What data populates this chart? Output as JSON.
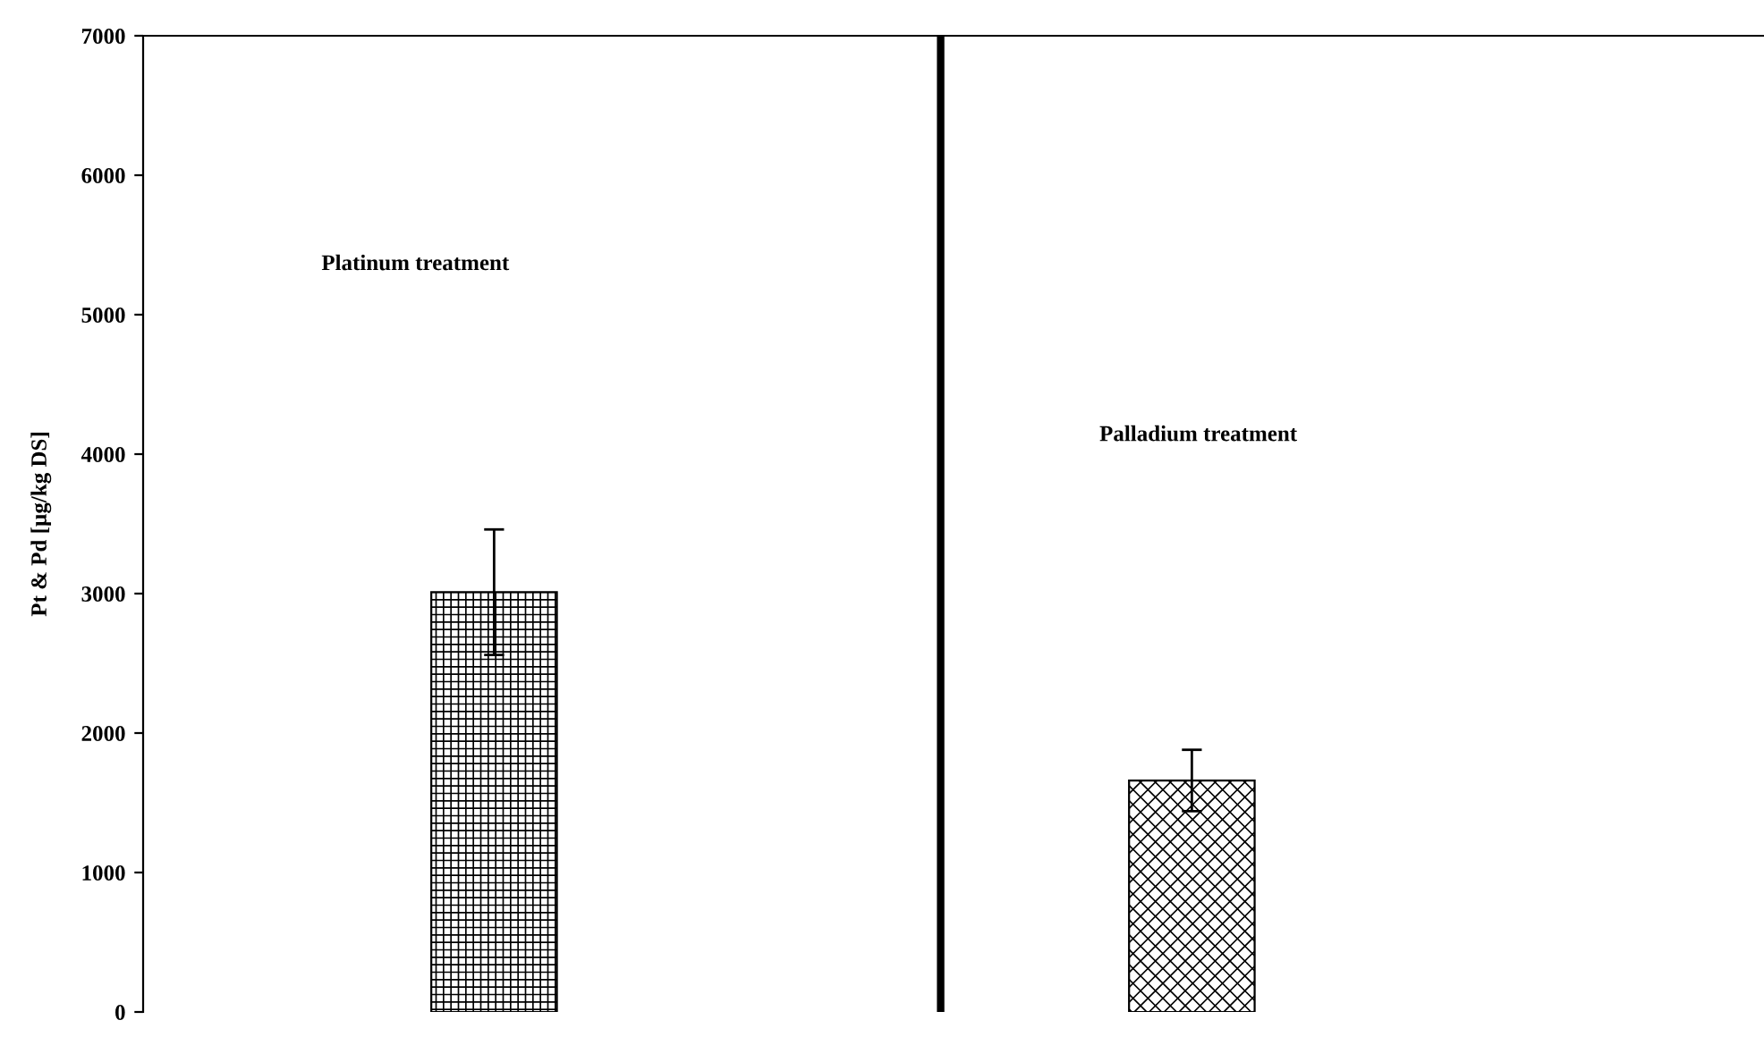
{
  "chart_data": {
    "type": "bar",
    "ylabel": "Pt & Pd [µg/kg DS]",
    "categories": [
      null,
      null
    ],
    "values": [
      3010,
      1660
    ],
    "errors": [
      450,
      220
    ],
    "colors": [
      "#000000",
      "#000000"
    ],
    "ylim": [
      0,
      7000
    ],
    "yticks": [
      0,
      1000,
      2000,
      3000,
      4000,
      5000,
      6000,
      7000
    ],
    "annotations": [
      "Platinum treatment",
      "Palladium treatment"
    ],
    "grid": false,
    "legend": false
  }
}
